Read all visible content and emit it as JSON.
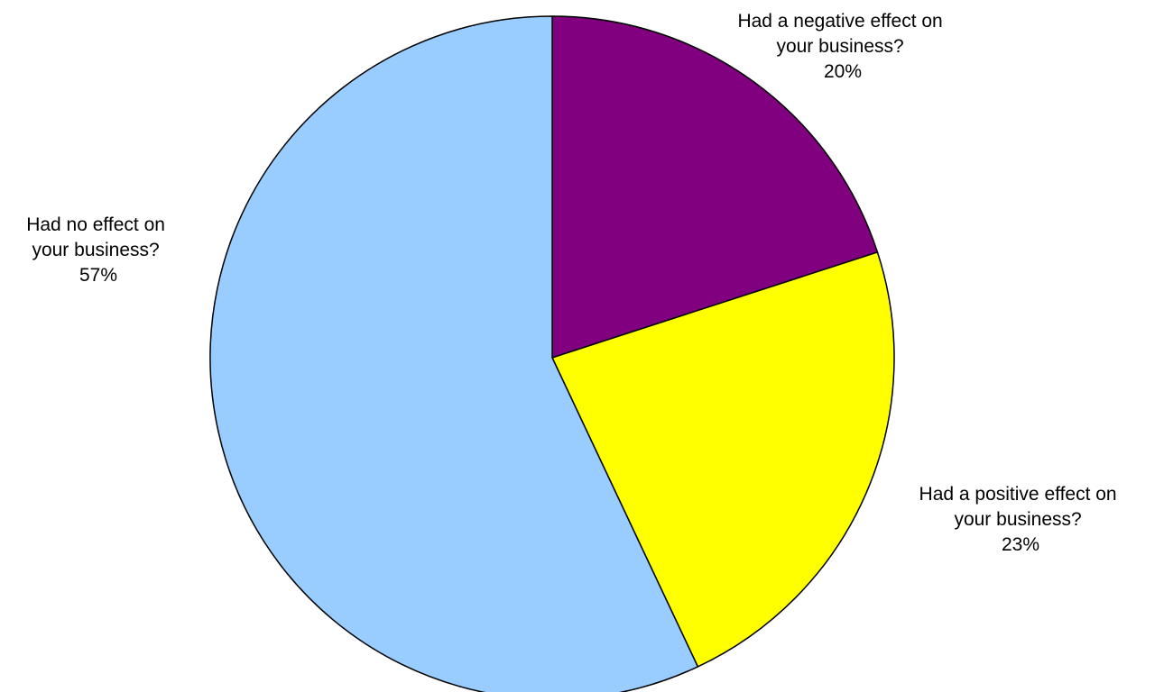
{
  "chart_data": {
    "type": "pie",
    "title": "",
    "start_angle_deg": 0,
    "direction": "clockwise",
    "legend": "none",
    "slices": [
      {
        "label_lines": [
          "Had a negative effect on",
          "your business?"
        ],
        "value": 20,
        "value_label": "20%",
        "color": "#800080"
      },
      {
        "label_lines": [
          "Had a positive effect on",
          "your business?"
        ],
        "value": 23,
        "value_label": "23%",
        "color": "#FFFF00"
      },
      {
        "label_lines": [
          "Had no effect on",
          "your business?"
        ],
        "value": 57,
        "value_label": "57%",
        "color": "#99CCFF"
      }
    ]
  }
}
